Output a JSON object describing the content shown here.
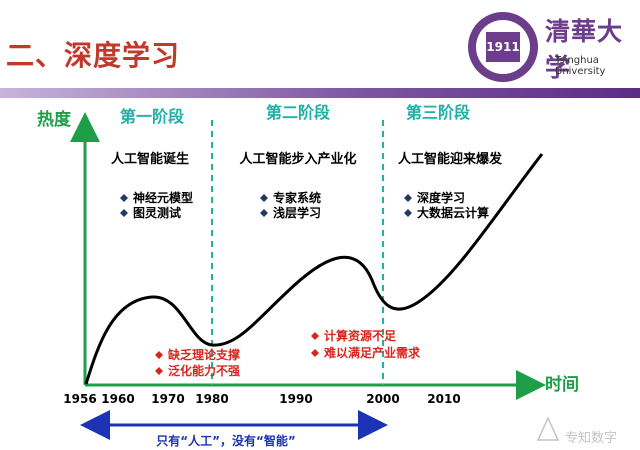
{
  "title": "二、深度学习",
  "logo": {
    "name_cn": "清華大学",
    "name_en": "Tsinghua University",
    "seal_text": "1911"
  },
  "axis": {
    "y_label": "热度",
    "x_label": "时间"
  },
  "x_ticks": [
    "1956",
    "1960",
    "1970",
    "1980",
    "1990",
    "2000",
    "2010"
  ],
  "stages": [
    {
      "label": "第一阶段",
      "heading": "人工智能诞生",
      "bullets": [
        "神经元模型",
        "图灵测试"
      ]
    },
    {
      "label": "第二阶段",
      "heading": "人工智能步入产业化",
      "bullets": [
        "专家系统",
        "浅层学习"
      ]
    },
    {
      "label": "第三阶段",
      "heading": "人工智能迎来爆发",
      "bullets": [
        "深度学习",
        "大数据云计算"
      ]
    }
  ],
  "problems": [
    {
      "items": [
        "缺乏理论支撑",
        "泛化能力不强"
      ]
    },
    {
      "items": [
        "计算资源不足",
        "难以满足产业需求"
      ]
    }
  ],
  "bottom_note": "只有“人工”，没有“智能”",
  "watermark": "专知数字",
  "colors": {
    "title_red": "#c0392b",
    "stage_teal": "#21b0a6",
    "axis_green": "#1e9e48",
    "bullet_navy": "#1f3b66",
    "problem_red": "#d7261e",
    "arrow_blue": "#1d33b5",
    "purple": "#6b3d8b"
  }
}
